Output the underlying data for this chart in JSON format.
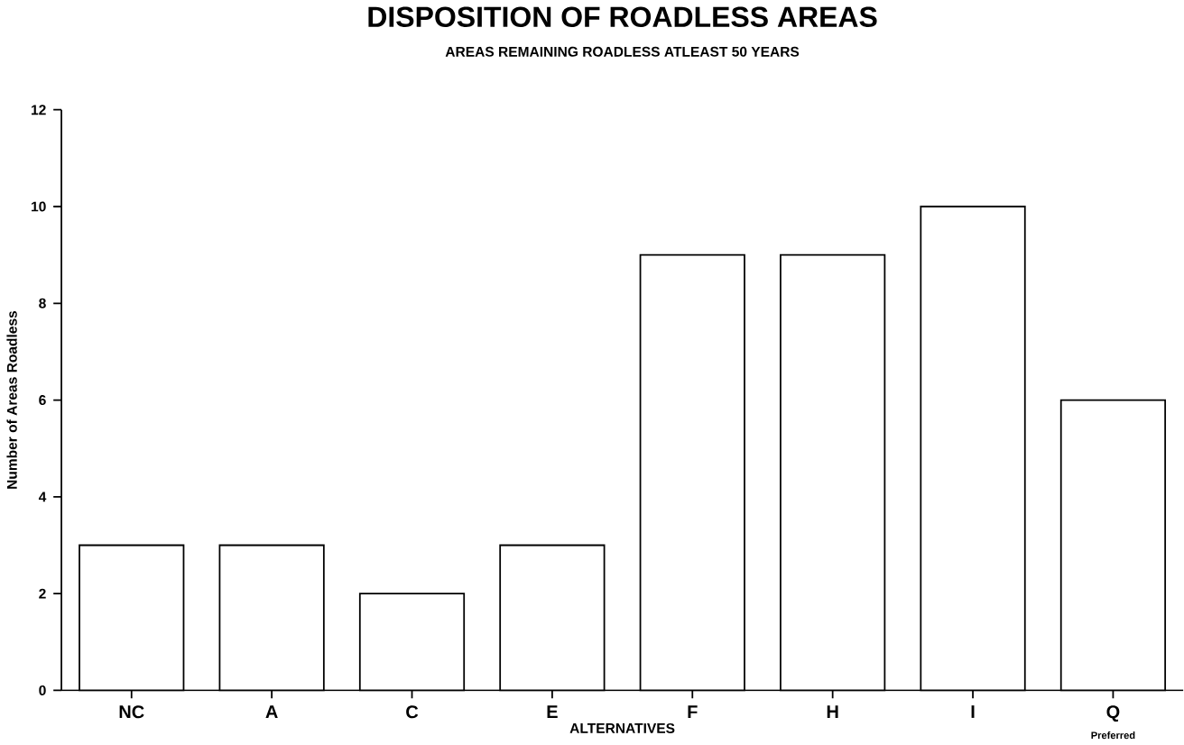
{
  "chart_data": {
    "type": "bar",
    "title": "DISPOSITION OF ROADLESS AREAS",
    "subtitle": "AREAS REMAINING ROADLESS ATLEAST 50 YEARS",
    "xlabel": "ALTERNATIVES",
    "ylabel": "Number of Areas Roadless",
    "categories": [
      "NC",
      "A",
      "C",
      "E",
      "F",
      "H",
      "I",
      "Q"
    ],
    "values": [
      3,
      3,
      2,
      3,
      9,
      9,
      10,
      6
    ],
    "color": "#ffffff",
    "ylim": [
      0,
      12
    ],
    "yticks": [
      0,
      2,
      4,
      6,
      8,
      10,
      12
    ],
    "annotations": [
      "Preferred"
    ],
    "grid": false
  }
}
